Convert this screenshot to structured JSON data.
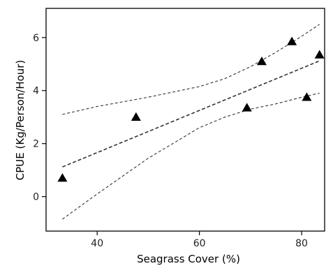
{
  "chart_data": {
    "type": "scatter",
    "title": "",
    "xlabel": "Seagrass Cover (%)",
    "ylabel": "CPUE (Kg/Person/Hour)",
    "xlim": [
      30,
      84.5
    ],
    "ylim": [
      -1.3,
      7.1
    ],
    "x_ticks": [
      40,
      60,
      80
    ],
    "y_ticks": [
      0,
      2,
      4,
      6
    ],
    "grid": false,
    "marker": "triangle",
    "points": [
      {
        "x": 33.2,
        "y": 0.7
      },
      {
        "x": 47.6,
        "y": 3.0
      },
      {
        "x": 69.3,
        "y": 3.35
      },
      {
        "x": 72.2,
        "y": 5.1
      },
      {
        "x": 78.1,
        "y": 5.85
      },
      {
        "x": 81.0,
        "y": 3.75
      },
      {
        "x": 83.5,
        "y": 5.35
      }
    ],
    "fit_line": {
      "style": "dashed",
      "x": [
        33.2,
        83.5
      ],
      "y": [
        1.12,
        5.12
      ]
    },
    "confidence_band": {
      "style": "dashed",
      "upper": {
        "x": [
          33.2,
          40,
          50,
          60,
          65,
          70,
          75,
          80,
          83.5
        ],
        "y": [
          3.1,
          3.4,
          3.75,
          4.15,
          4.45,
          4.9,
          5.45,
          6.05,
          6.5
        ]
      },
      "lower": {
        "x": [
          33.2,
          40,
          50,
          60,
          65,
          70,
          75,
          80,
          83.5
        ],
        "y": [
          -0.85,
          0.1,
          1.45,
          2.6,
          3.0,
          3.3,
          3.5,
          3.75,
          3.9
        ]
      }
    }
  }
}
